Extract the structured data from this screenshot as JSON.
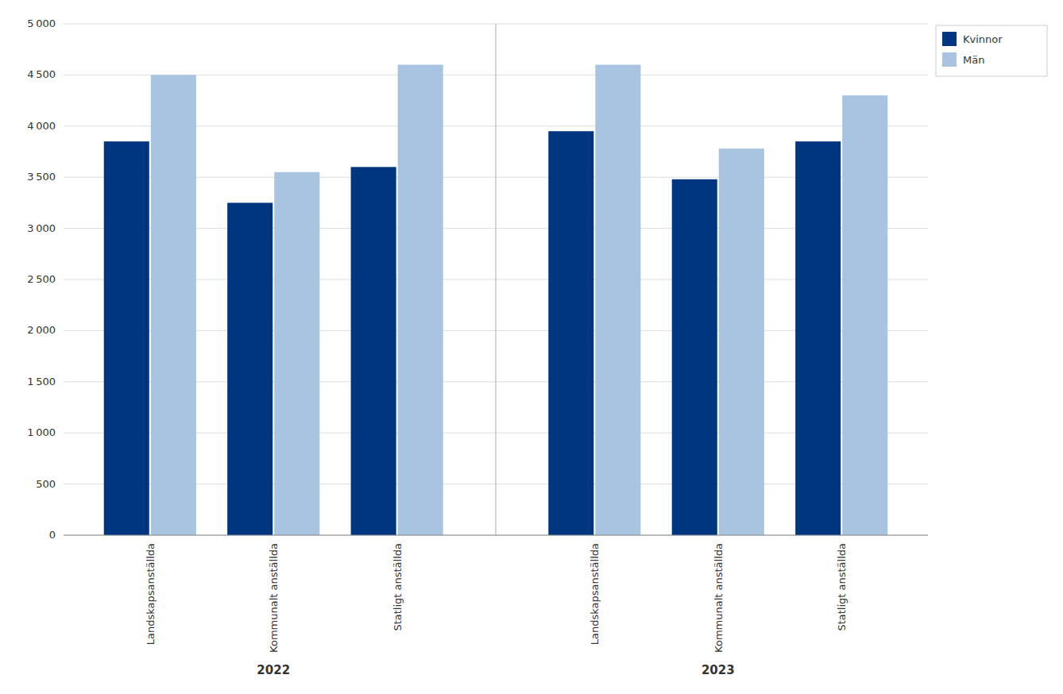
{
  "chart_data": {
    "type": "bar",
    "categories": [
      "Landskapsanställda",
      "Kommunalt anställda",
      "Statligt anställda",
      "Landskapsanställda",
      "Kommunalt anställda",
      "Statligt anställda"
    ],
    "annotations": [
      "2022",
      "2023"
    ],
    "series": [
      {
        "name": "Kvinnor",
        "color": "#003580",
        "values": [
          3850,
          3250,
          3600,
          3950,
          3480,
          3850
        ]
      },
      {
        "name": "Män",
        "color": "#a8c4e0",
        "values": [
          4500,
          3550,
          4600,
          4600,
          3780,
          4300
        ]
      }
    ],
    "ylim": [
      0,
      5000
    ],
    "yticks": [
      0,
      500,
      {
        "value": 1000,
        "label": "1 000"
      },
      {
        "value": 1500,
        "label": "1 500"
      },
      {
        "value": 2000,
        "label": "2 000"
      },
      {
        "value": 2500,
        "label": "2 500"
      },
      {
        "value": 3000,
        "label": "3 000"
      },
      {
        "value": 3500,
        "label": "3 500"
      },
      {
        "value": 4000,
        "label": "4 000"
      },
      {
        "value": 4500,
        "label": "4 500"
      },
      {
        "value": 5000,
        "label": "5 000"
      }
    ],
    "grid": true,
    "legend": "upper right"
  }
}
